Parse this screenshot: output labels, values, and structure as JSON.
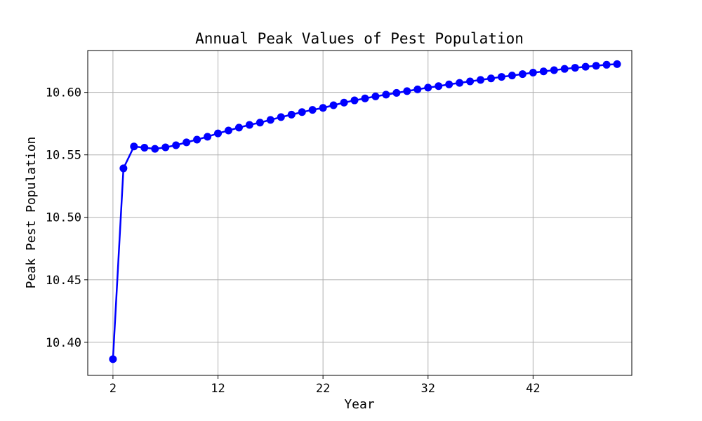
{
  "chart_data": {
    "type": "line",
    "title": "Annual Peak Values of Pest Population",
    "xlabel": "Year",
    "ylabel": "Peak Pest Population",
    "xlim": [
      -0.4,
      51.4
    ],
    "ylim": [
      10.3735,
      10.6335
    ],
    "xticks": [
      2,
      12,
      22,
      32,
      42
    ],
    "xtick_labels": [
      "2",
      "12",
      "22",
      "32",
      "42"
    ],
    "yticks": [
      10.4,
      10.45,
      10.5,
      10.55,
      10.6
    ],
    "ytick_labels": [
      "10.40",
      "10.45",
      "10.50",
      "10.55",
      "10.60"
    ],
    "grid": true,
    "color": "#0000ff",
    "series": [
      {
        "x": [
          2,
          3,
          4,
          5,
          6,
          7,
          8,
          9,
          10,
          11,
          12,
          13,
          14,
          15,
          16,
          17,
          18,
          19,
          20,
          21,
          22,
          23,
          24,
          25,
          26,
          27,
          28,
          29,
          30,
          31,
          32,
          33,
          34,
          35,
          36,
          37,
          38,
          39,
          40,
          41,
          42,
          43,
          44,
          45,
          46,
          47,
          48,
          49,
          50
        ],
        "values": [
          10.3865,
          10.5392,
          10.5567,
          10.5557,
          10.5548,
          10.556,
          10.5577,
          10.56,
          10.5622,
          10.5645,
          10.5672,
          10.5695,
          10.5718,
          10.574,
          10.5758,
          10.578,
          10.5802,
          10.5822,
          10.5842,
          10.586,
          10.5876,
          10.5897,
          10.5918,
          10.5936,
          10.5952,
          10.5968,
          10.5982,
          10.5996,
          10.601,
          10.6024,
          10.6038,
          10.605,
          10.6064,
          10.6076,
          10.6088,
          10.61,
          10.6112,
          10.6124,
          10.6135,
          10.6146,
          10.6158,
          10.6168,
          10.6178,
          10.6188,
          10.6197,
          10.6205,
          10.6213,
          10.6221,
          10.6226
        ]
      }
    ]
  }
}
